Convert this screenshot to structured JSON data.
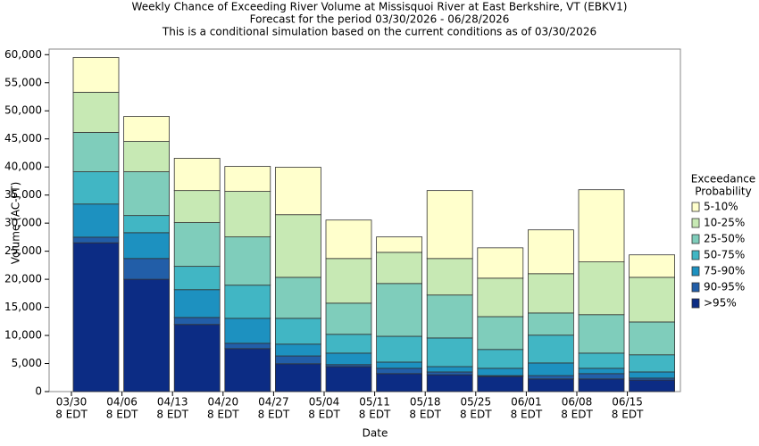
{
  "chart_data": {
    "type": "stacked_bar",
    "title": "Weekly Chance of Exceeding River Volume at Missisquoi River at East Berkshire, VT (EBKV1)",
    "subtitle": "Forecast for the period 03/30/2026 - 06/28/2026",
    "subtitle2": "This is a conditional simulation based on the current conditions as of 03/30/2026",
    "x_label": "Date",
    "y_label": "Volume (AC-FT)",
    "legend_title": [
      "Exceedance",
      "Probability"
    ],
    "categories": [
      "03/30",
      "04/06",
      "04/13",
      "04/20",
      "04/27",
      "05/04",
      "05/11",
      "05/18",
      "05/25",
      "06/01",
      "06/08",
      "06/15"
    ],
    "category_sublabel": "8 EDT",
    "ylim": [
      0,
      61000
    ],
    "yticks": [
      0,
      {
        "value": 5000,
        "label": "5,000"
      },
      {
        "value": 10000,
        "label": "10,000"
      },
      {
        "value": 15000,
        "label": "15,000"
      },
      {
        "value": 20000,
        "label": "20,000"
      },
      {
        "value": 25000,
        "label": "25,000"
      },
      {
        "value": 30000,
        "label": "30,000"
      },
      {
        "value": 35000,
        "label": "35,000"
      },
      {
        "value": 40000,
        "label": "40,000"
      },
      {
        "value": 45000,
        "label": "45,000"
      },
      {
        "value": 50000,
        "label": "50,000"
      },
      {
        "value": 55000,
        "label": "55,000"
      },
      {
        "value": 60000,
        "label": "60,000"
      }
    ],
    "series": [
      {
        "name": ">95%",
        "color": "#0c2c84",
        "values": [
          26500,
          20000,
          11950,
          7650,
          4950,
          4450,
          3200,
          3000,
          2700,
          2250,
          2250,
          2050
        ]
      },
      {
        "name": "90-95%",
        "color": "#225ea8",
        "values": [
          1000,
          3700,
          1250,
          950,
          1400,
          350,
          950,
          500,
          150,
          600,
          950,
          350
        ]
      },
      {
        "name": "75-90%",
        "color": "#1d91c0",
        "values": [
          5900,
          4600,
          4950,
          4450,
          2100,
          2050,
          1100,
          950,
          1300,
          2250,
          950,
          1100
        ]
      },
      {
        "name": "50-75%",
        "color": "#41b6c4",
        "values": [
          5750,
          3050,
          4150,
          5900,
          4600,
          3350,
          4600,
          5100,
          3350,
          4950,
          2700,
          3050
        ]
      },
      {
        "name": "25-50%",
        "color": "#7fcdbb",
        "values": [
          7000,
          7800,
          7800,
          8600,
          7300,
          5550,
          9400,
          7650,
          5850,
          3950,
          6850,
          5850
        ]
      },
      {
        "name": "10-25%",
        "color": "#c7e9b4",
        "values": [
          7150,
          5400,
          5700,
          8100,
          11150,
          7950,
          5550,
          6500,
          6850,
          7000,
          9400,
          7950
        ]
      },
      {
        "name": "5-10%",
        "color": "#ffffcc",
        "values": [
          6200,
          4450,
          5750,
          4450,
          8450,
          6850,
          2750,
          12100,
          5400,
          7800,
          12850,
          4000
        ]
      }
    ]
  }
}
